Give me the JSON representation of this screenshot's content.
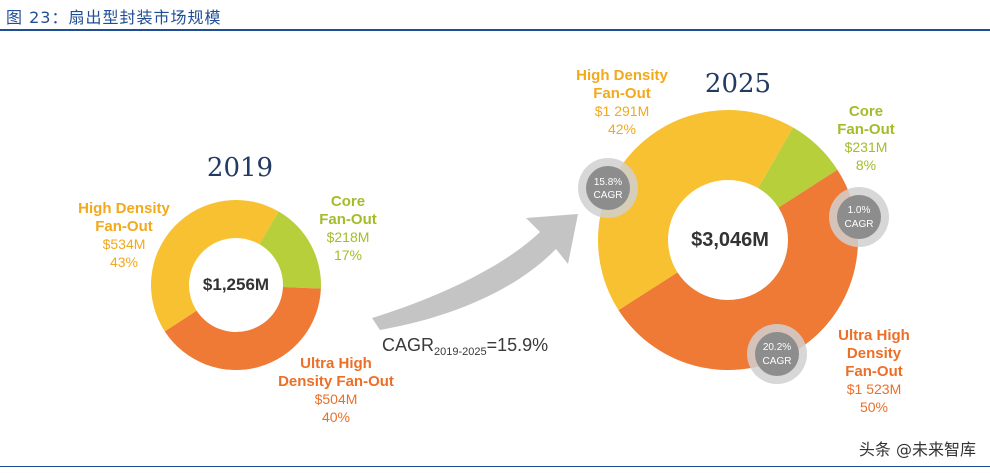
{
  "header": {
    "title": "图 23：扇出型封装市场规模"
  },
  "chart_data": {
    "type": "pie",
    "title": "扇出型封装市场规模",
    "cagr_label": "CAGR",
    "cagr_period": "2019-2025",
    "cagr_value": "=15.9%",
    "charts": [
      {
        "year": "2019",
        "total": "$1,256M",
        "segments": [
          {
            "key": "core",
            "lines": [
              "Core",
              "Fan-Out"
            ],
            "value_label": "$218M",
            "pct_label": "17%",
            "value": 218,
            "color": "#b8cf3c"
          },
          {
            "key": "uhd",
            "lines": [
              "Ultra High",
              "Density Fan-Out"
            ],
            "value_label": "$504M",
            "pct_label": "40%",
            "value": 504,
            "color": "#ee7a35"
          },
          {
            "key": "hd",
            "lines": [
              "High Density",
              "Fan-Out"
            ],
            "value_label": "$534M",
            "pct_label": "43%",
            "value": 534,
            "color": "#f8c132"
          }
        ]
      },
      {
        "year": "2025",
        "total": "$3,046M",
        "segments": [
          {
            "key": "core",
            "lines": [
              "Core",
              "Fan-Out"
            ],
            "value_label": "$231M",
            "pct_label": "8%",
            "value": 231,
            "color": "#b8cf3c",
            "cagr": [
              "1.0%",
              "CAGR"
            ]
          },
          {
            "key": "uhd",
            "lines": [
              "Ultra High",
              "Density",
              "Fan-Out"
            ],
            "value_label": "$1 523M",
            "pct_label": "50%",
            "value": 1523,
            "color": "#ee7a35",
            "cagr": [
              "20.2%",
              "CAGR"
            ]
          },
          {
            "key": "hd",
            "lines": [
              "High Density",
              "Fan-Out"
            ],
            "value_label": "$1 291M",
            "pct_label": "42%",
            "value": 1291,
            "color": "#f8c132",
            "cagr": [
              "15.8%",
              "CAGR"
            ]
          }
        ]
      }
    ]
  },
  "footer": {
    "watermark": "头条 @未来智库"
  }
}
